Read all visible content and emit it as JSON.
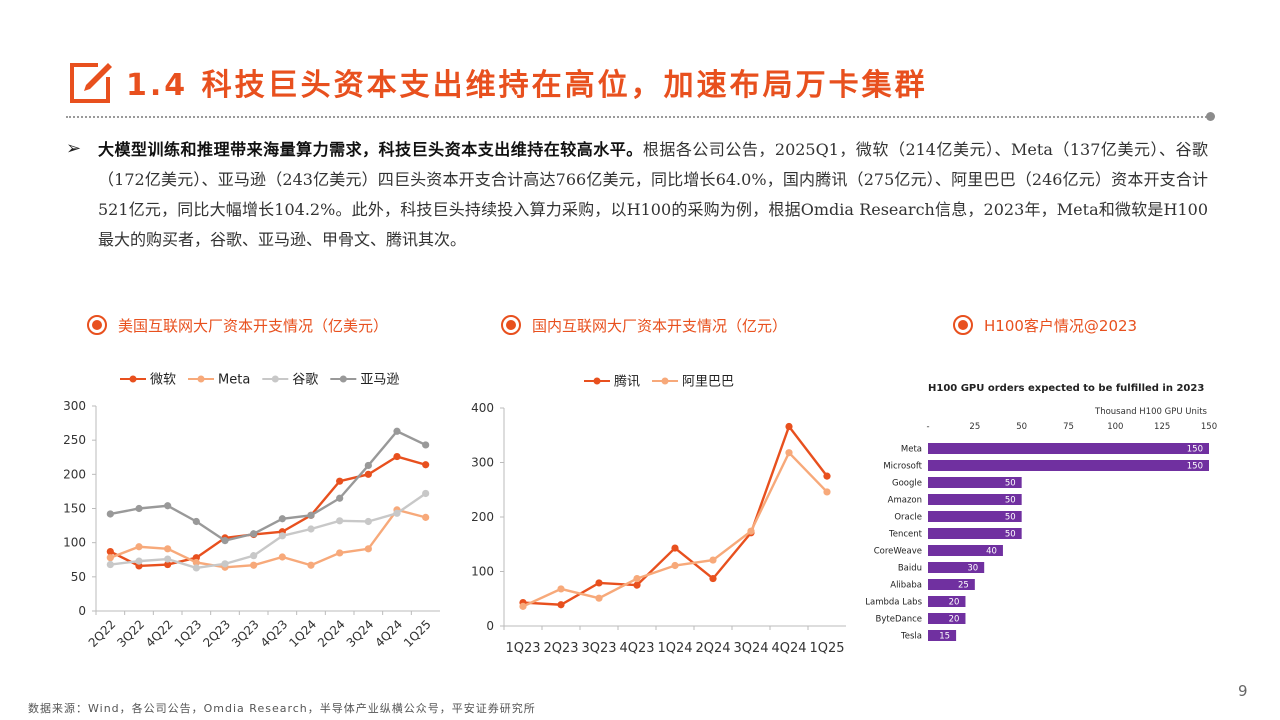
{
  "header": {
    "title": "1.4 科技巨头资本支出维持在高位，加速布局万卡集群",
    "icon": "pencil-in-box-icon",
    "accent_color": "#e8501e"
  },
  "body": {
    "bullet_symbol": "➢",
    "lead_bold": "大模型训练和推理带来海量算力需求，科技巨头资本支出维持在较高水平。",
    "text": "根据各公司公告，2025Q1，微软（214亿美元）、Meta（137亿美元）、谷歌（172亿美元）、亚马逊（243亿美元）四巨头资本开支合计高达766亿美元，同比增长64.0%，国内腾讯（275亿元）、阿里巴巴（246亿元）资本开支合计521亿元，同比大幅增长104.2%。此外，科技巨头持续投入算力采购，以H100的采购为例，根据Omdia Research信息，2023年，Meta和微软是H100最大的购买者，谷歌、亚马逊、甲骨文、腾讯其次。"
  },
  "sections": {
    "us": "美国互联网大厂资本开支情况（亿美元）",
    "cn": "国内互联网大厂资本开支情况（亿元）",
    "h100": "H100客户情况@2023",
    "icon": "target-circle-icon"
  },
  "chart_data": [
    {
      "type": "line",
      "categories": [
        "2Q22",
        "3Q22",
        "4Q22",
        "1Q23",
        "2Q23",
        "3Q23",
        "4Q23",
        "1Q24",
        "2Q24",
        "3Q24",
        "4Q24",
        "1Q25"
      ],
      "series": [
        {
          "name": "微软",
          "color": "#e8501e",
          "values": [
            87,
            66,
            68,
            78,
            107,
            112,
            116,
            140,
            190,
            200,
            226,
            214
          ]
        },
        {
          "name": "Meta",
          "color": "#f7a97a",
          "values": [
            78,
            94,
            91,
            71,
            64,
            67,
            79,
            67,
            85,
            91,
            148,
            137
          ]
        },
        {
          "name": "谷歌",
          "color": "#c8c8c8",
          "values": [
            68,
            73,
            76,
            63,
            69,
            81,
            110,
            120,
            132,
            131,
            143,
            172
          ]
        },
        {
          "name": "亚马逊",
          "color": "#999999",
          "values": [
            142,
            150,
            154,
            131,
            103,
            113,
            135,
            140,
            165,
            213,
            263,
            243
          ]
        }
      ],
      "ylim": [
        0,
        300
      ],
      "yticks": [
        0,
        50,
        100,
        150,
        200,
        250,
        300
      ],
      "legend": "top"
    },
    {
      "type": "line",
      "categories": [
        "1Q23",
        "2Q23",
        "3Q23",
        "4Q23",
        "1Q24",
        "2Q24",
        "3Q24",
        "4Q24",
        "1Q25"
      ],
      "series": [
        {
          "name": "腾讯",
          "color": "#e8501e",
          "values": [
            43,
            39,
            79,
            75,
            143,
            87,
            171,
            366,
            275
          ]
        },
        {
          "name": "阿里巴巴",
          "color": "#f7a97a",
          "values": [
            36,
            68,
            51,
            87,
            111,
            121,
            174,
            318,
            246
          ]
        }
      ],
      "ylim": [
        0,
        400
      ],
      "yticks": [
        0,
        100,
        200,
        300,
        400
      ],
      "legend": "top"
    },
    {
      "type": "bar",
      "orientation": "horizontal",
      "title": "H100 GPU orders expected to be fulfilled in 2023",
      "xlabel": "Thousand H100 GPU Units",
      "color": "#7030a0",
      "categories": [
        "Meta",
        "Microsoft",
        "Google",
        "Amazon",
        "Oracle",
        "Tencent",
        "CoreWeave",
        "Baidu",
        "Alibaba",
        "Lambda Labs",
        "ByteDance",
        "Tesla"
      ],
      "values": [
        150,
        150,
        50,
        50,
        50,
        50,
        40,
        30,
        25,
        20,
        20,
        15
      ],
      "xlim": [
        0,
        150
      ],
      "xticks": [
        "-",
        "25",
        "50",
        "75",
        "100",
        "125",
        "150"
      ]
    }
  ],
  "footer": {
    "source": "数据来源：Wind，各公司公告，Omdia Research，半导体产业纵横公众号，平安证券研究所",
    "page": "9"
  }
}
